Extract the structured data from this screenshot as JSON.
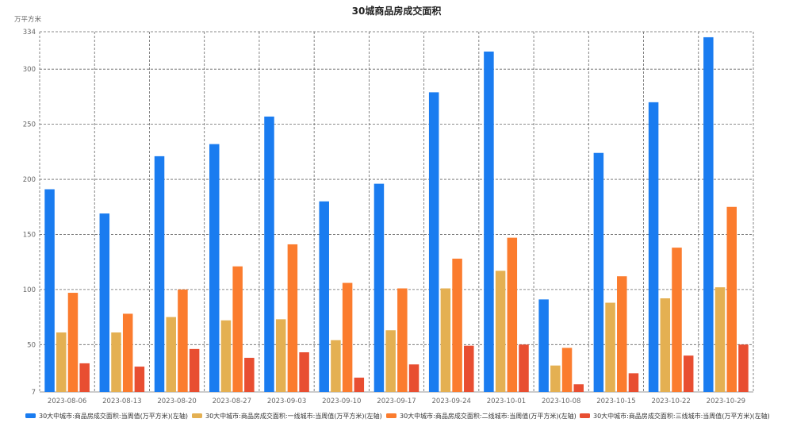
{
  "chart_data": {
    "type": "bar",
    "title": "30城商品房成交面积",
    "ylabel": "万平方米",
    "ylim": [
      7,
      334
    ],
    "yticks": [
      7,
      50,
      100,
      150,
      200,
      250,
      300,
      334
    ],
    "grid": true,
    "legend_position": "bottom",
    "categories": [
      "2023-08-06",
      "2023-08-13",
      "2023-08-20",
      "2023-08-27",
      "2023-09-03",
      "2023-09-10",
      "2023-09-17",
      "2023-09-24",
      "2023-10-01",
      "2023-10-08",
      "2023-10-15",
      "2023-10-22",
      "2023-10-29"
    ],
    "series": [
      {
        "name": "30大中城市:商品房成交面积:当周值(万平方米)(左轴)",
        "color": "#1a7cf0",
        "values": [
          191,
          169,
          221,
          232,
          257,
          180,
          196,
          279,
          316,
          91,
          224,
          270,
          329
        ]
      },
      {
        "name": "30大中城市:商品房成交面积:一线城市:当周值(万平方米)(左轴)",
        "color": "#e4b052",
        "values": [
          61,
          61,
          75,
          72,
          73,
          54,
          63,
          101,
          117,
          31,
          88,
          92,
          102
        ]
      },
      {
        "name": "30大中城市:商品房成交面积:二线城市:当周值(万平方米)(左轴)",
        "color": "#fb7c2e",
        "values": [
          97,
          78,
          100,
          121,
          141,
          106,
          101,
          128,
          147,
          47,
          112,
          138,
          175
        ]
      },
      {
        "name": "30大中城市:商品房成交面积:三线城市:当周值(万平方米)(左轴)",
        "color": "#e84e31",
        "values": [
          33,
          30,
          46,
          38,
          43,
          20,
          32,
          49,
          50,
          14,
          24,
          40,
          50
        ]
      }
    ]
  }
}
